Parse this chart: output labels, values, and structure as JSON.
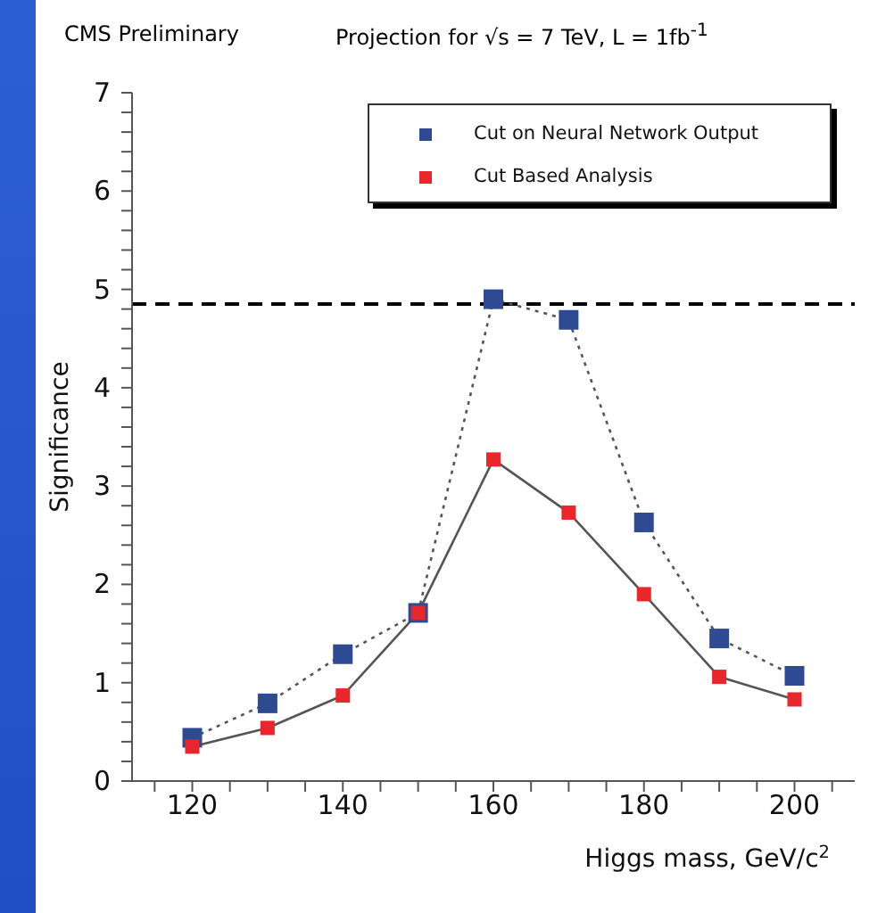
{
  "chart_data": {
    "type": "line",
    "title": "CMS Preliminary",
    "subtitle": "Projection for √s = 7 TeV, L = 1fb$^{-1}$",
    "xlabel": "Higgs mass, GeV/c$^{2}$",
    "ylabel": "Significance",
    "x": [
      120,
      130,
      140,
      150,
      160,
      170,
      180,
      190,
      200
    ],
    "series": [
      {
        "name": "Cut on Neural Network Output",
        "color": "#2e4a93",
        "line_style": "dotted",
        "values": [
          0.44,
          0.79,
          1.29,
          1.71,
          4.9,
          4.69,
          2.63,
          1.45,
          1.07
        ]
      },
      {
        "name": "Cut Based Analysis",
        "color": "#e8262b",
        "line_style": "solid",
        "values": [
          0.35,
          0.54,
          0.87,
          1.71,
          3.27,
          2.73,
          1.9,
          1.06,
          0.83
        ]
      }
    ],
    "marker": "square",
    "legend": "top right",
    "grid": false,
    "xlim": [
      112,
      208
    ],
    "ylim": [
      0,
      7
    ],
    "xticks": [
      {
        "value": 115,
        "label": null
      },
      120,
      {
        "value": 125,
        "label": null
      },
      {
        "value": 130,
        "label": null
      },
      140,
      {
        "value": 135,
        "label": null
      },
      {
        "value": 145,
        "label": null
      },
      {
        "value": 150,
        "label": null
      },
      {
        "value": 155,
        "label": null
      },
      160,
      {
        "value": 165,
        "label": null
      },
      {
        "value": 170,
        "label": null
      },
      {
        "value": 175,
        "label": null
      },
      180,
      {
        "value": 185,
        "label": null
      },
      {
        "value": 190,
        "label": null
      },
      {
        "value": 195,
        "label": null
      },
      200,
      {
        "value": 205,
        "label": null
      }
    ],
    "yticks": [
      0,
      {
        "value": 0.2,
        "label": null
      },
      {
        "value": 0.4,
        "label": null
      },
      {
        "value": 0.6,
        "label": null
      },
      {
        "value": 0.8,
        "label": null
      },
      1,
      {
        "value": 1.2,
        "label": null
      },
      {
        "value": 1.4,
        "label": null
      },
      {
        "value": 1.6,
        "label": null
      },
      {
        "value": 1.8,
        "label": null
      },
      2,
      {
        "value": 2.2,
        "label": null
      },
      {
        "value": 2.4,
        "label": null
      },
      {
        "value": 2.6,
        "label": null
      },
      {
        "value": 2.8,
        "label": null
      },
      3,
      {
        "value": 3.2,
        "label": null
      },
      {
        "value": 3.4,
        "label": null
      },
      {
        "value": 3.6,
        "label": null
      },
      {
        "value": 3.8,
        "label": null
      },
      4,
      {
        "value": 4.2,
        "label": null
      },
      {
        "value": 4.4,
        "label": null
      },
      {
        "value": 4.6,
        "label": null
      },
      {
        "value": 4.8,
        "label": null
      },
      5,
      {
        "value": 5.2,
        "label": null
      },
      {
        "value": 5.4,
        "label": null
      },
      {
        "value": 5.6,
        "label": null
      },
      {
        "value": 5.8,
        "label": null
      },
      6,
      {
        "value": 6.2,
        "label": null
      },
      {
        "value": 6.4,
        "label": null
      },
      {
        "value": 6.6,
        "label": null
      },
      {
        "value": 6.8,
        "label": null
      },
      7
    ],
    "ref_lines": [
      {
        "axis": "y",
        "value": 4.85,
        "color": "#000000",
        "line_style": "dashed"
      }
    ]
  }
}
